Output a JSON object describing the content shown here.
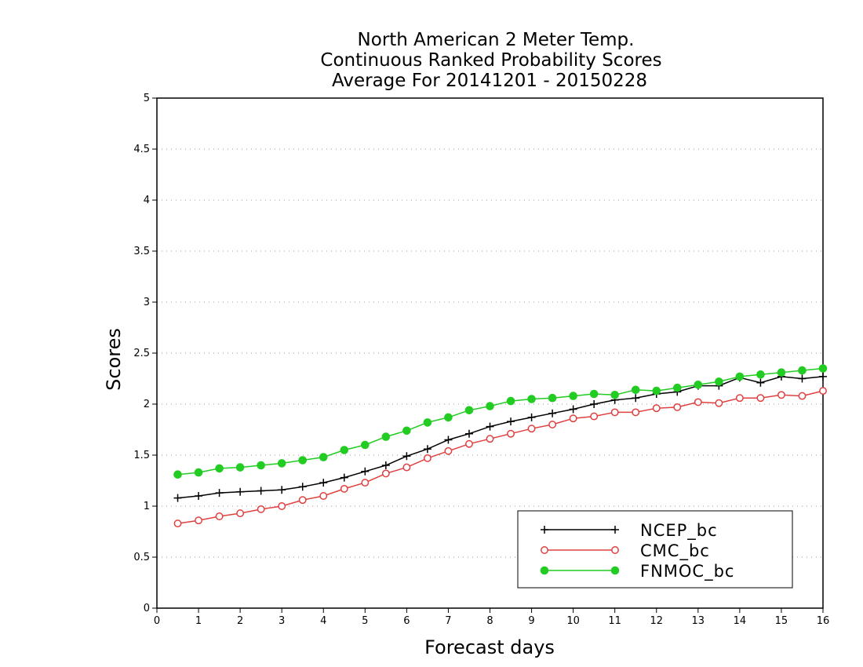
{
  "chart_data": {
    "type": "line",
    "title": [
      "North American 2 Meter Temp.",
      "Continuous Ranked Probability Scores",
      "Average For 20141201 - 20150228"
    ],
    "xlabel": "Forecast days",
    "ylabel": "Scores",
    "xlim": [
      0,
      16
    ],
    "ylim": [
      0,
      5
    ],
    "x_ticks": [
      0,
      1,
      2,
      3,
      4,
      5,
      6,
      7,
      8,
      9,
      10,
      11,
      12,
      13,
      14,
      15,
      16
    ],
    "y_ticks": [
      "0",
      "0.5",
      "1",
      "1.5",
      "2",
      "2.5",
      "3",
      "3.5",
      "4",
      "4.5",
      "5"
    ],
    "grid": "horizontal dotted",
    "legend_position": "bottom-right",
    "x": [
      0.5,
      1,
      1.5,
      2,
      2.5,
      3,
      3.5,
      4,
      4.5,
      5,
      5.5,
      6,
      6.5,
      7,
      7.5,
      8,
      8.5,
      9,
      9.5,
      10,
      10.5,
      11,
      11.5,
      12,
      12.5,
      13,
      13.5,
      14,
      14.5,
      15,
      15.5,
      16
    ],
    "series": [
      {
        "name": "NCEP_bc",
        "color": "#000000",
        "marker": "plus",
        "values": [
          1.08,
          1.1,
          1.13,
          1.14,
          1.15,
          1.16,
          1.19,
          1.23,
          1.28,
          1.34,
          1.4,
          1.49,
          1.56,
          1.65,
          1.71,
          1.78,
          1.83,
          1.87,
          1.91,
          1.95,
          2.0,
          2.04,
          2.06,
          2.1,
          2.12,
          2.18,
          2.18,
          2.26,
          2.21,
          2.27,
          2.25,
          2.27
        ]
      },
      {
        "name": "CMC_bc",
        "color": "#e04040",
        "marker": "open-circle",
        "values": [
          0.83,
          0.86,
          0.9,
          0.93,
          0.97,
          1.0,
          1.06,
          1.1,
          1.17,
          1.23,
          1.32,
          1.38,
          1.47,
          1.54,
          1.61,
          1.66,
          1.71,
          1.76,
          1.8,
          1.86,
          1.88,
          1.92,
          1.92,
          1.96,
          1.97,
          2.02,
          2.01,
          2.06,
          2.06,
          2.09,
          2.08,
          2.13
        ]
      },
      {
        "name": "FNMOC_bc",
        "color": "#22cc22",
        "marker": "filled-circle",
        "values": [
          1.31,
          1.33,
          1.37,
          1.38,
          1.4,
          1.42,
          1.45,
          1.48,
          1.55,
          1.6,
          1.68,
          1.74,
          1.82,
          1.87,
          1.94,
          1.98,
          2.03,
          2.05,
          2.06,
          2.08,
          2.1,
          2.09,
          2.14,
          2.13,
          2.16,
          2.19,
          2.22,
          2.27,
          2.29,
          2.31,
          2.33,
          2.35
        ]
      }
    ]
  }
}
